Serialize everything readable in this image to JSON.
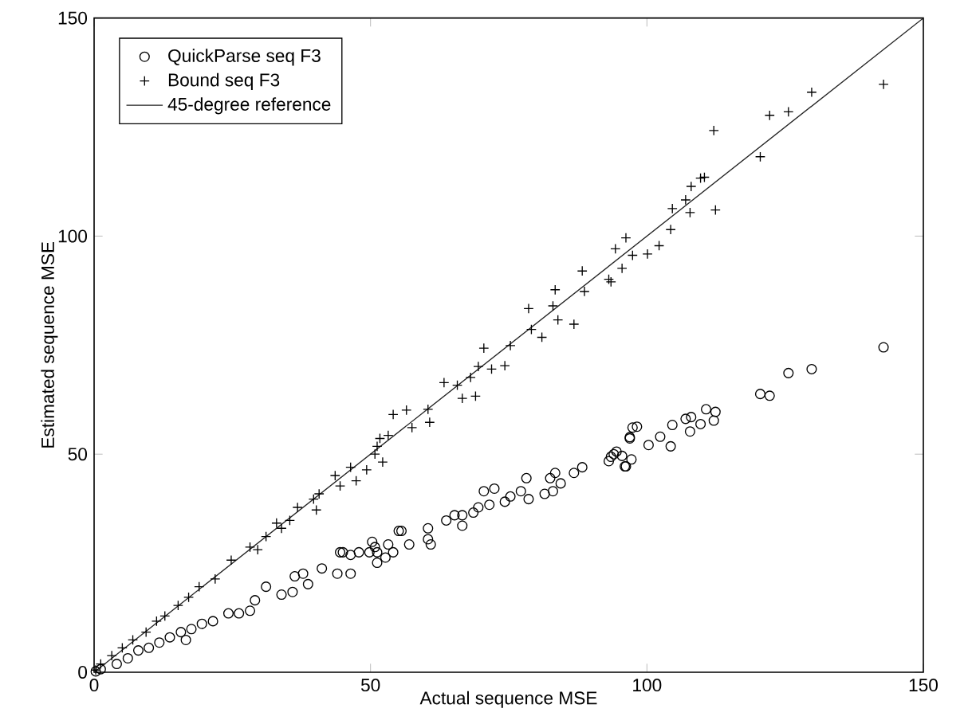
{
  "chart_data": {
    "type": "scatter",
    "xlabel": "Actual sequence MSE",
    "ylabel": "Estimated sequence MSE",
    "xlim": [
      0,
      150
    ],
    "ylim": [
      0,
      150
    ],
    "xticks": [
      0,
      50,
      100,
      150
    ],
    "yticks": [
      0,
      50,
      100,
      150
    ],
    "grid": false,
    "legend": "top left",
    "series": [
      {
        "name": "QuickParse seq F3",
        "color": "#000000",
        "marker": "circle",
        "x": [
          142.8,
          129.8,
          125.6,
          120.5,
          122.2,
          110.7,
          112.4,
          112.1,
          108,
          107,
          109.7,
          107.8,
          104.6,
          104.3,
          102.4,
          100.3,
          98.2,
          96.9,
          97.2,
          96,
          94.5,
          93.5,
          97.4,
          96.9,
          94,
          95.5,
          93.1,
          96.2,
          88.3,
          86.8,
          83.4,
          82.5,
          84.4,
          83,
          81.5,
          78.2,
          77.2,
          78.6,
          75.3,
          74.3,
          72.4,
          70.5,
          71.5,
          69.5,
          68.6,
          66.6,
          63.7,
          65.2,
          66.6,
          60.4,
          60.4,
          60.9,
          55.6,
          57,
          53.2,
          50.8,
          51.2,
          47.9,
          45,
          54.1,
          55.1,
          50.3,
          49.8,
          52.7,
          51.2,
          44.5,
          46.4,
          41.2,
          44,
          46.4,
          36.3,
          37.8,
          31.1,
          33.9,
          35.9,
          38.7,
          29.1,
          26.2,
          28.2,
          24.3,
          21.5,
          19.5,
          17.6,
          15.7,
          16.6,
          13.7,
          11.8,
          9.9,
          8,
          6.1,
          4.1,
          1.2,
          0.3
        ],
        "values": [
          74.5,
          69.5,
          68.6,
          63.8,
          63.4,
          60.3,
          59.7,
          57.7,
          58.5,
          58.1,
          56.9,
          55.2,
          56.7,
          51.8,
          54,
          52.1,
          56.3,
          53.9,
          48.8,
          47.2,
          50.6,
          49.4,
          56.1,
          53.6,
          50,
          49.6,
          48.4,
          47.2,
          47,
          45.7,
          45.7,
          44.5,
          43.3,
          41.5,
          40.9,
          44.5,
          41.5,
          39.7,
          40.3,
          39.1,
          42.1,
          41.5,
          38.4,
          37.8,
          36.6,
          36,
          34.8,
          36,
          33.6,
          33,
          30.5,
          29.3,
          32.4,
          29.3,
          29.3,
          28.7,
          27.5,
          27.5,
          27.5,
          27.5,
          32.4,
          29.9,
          27.5,
          26.3,
          25.1,
          27.5,
          26.9,
          23.8,
          22.6,
          22.6,
          22,
          22.6,
          19.6,
          17.8,
          18.4,
          20.2,
          16.5,
          13.5,
          14.1,
          13.5,
          11.7,
          11.1,
          9.9,
          9.2,
          7.4,
          8,
          6.8,
          5.6,
          5,
          3.2,
          1.9,
          0.7,
          0.2
        ]
      },
      {
        "name": "Bound seq F3",
        "color": "#000000",
        "marker": "cross",
        "x": [
          142.8,
          129.8,
          125.6,
          122.2,
          120.5,
          112.1,
          112.4,
          110.4,
          109.7,
          108,
          107,
          104.6,
          107.8,
          104.3,
          102.2,
          100.1,
          96.2,
          94.3,
          97.4,
          95.5,
          93.5,
          88.3,
          88.7,
          93.1,
          83.4,
          83,
          83.9,
          86.8,
          78.6,
          81,
          79.1,
          75.3,
          70.5,
          71.9,
          74.3,
          69.5,
          68.1,
          66.6,
          69,
          63.3,
          65.7,
          60.4,
          56.5,
          54.1,
          57.5,
          60.7,
          53.2,
          50.8,
          51.2,
          52.2,
          49.3,
          46.4,
          47.4,
          44.5,
          43.6,
          40.7,
          51.7,
          39.7,
          40.2,
          36.8,
          35.4,
          33,
          33.9,
          31.1,
          29.6,
          28.2,
          24.8,
          21.9,
          19,
          17.1,
          15.2,
          12.8,
          11.3,
          9.4,
          7,
          5.1,
          3.2,
          1.2,
          0.3
        ],
        "values": [
          134.8,
          133,
          128.5,
          127.7,
          118.2,
          124.2,
          106,
          113.5,
          113.3,
          111.4,
          108.3,
          106.3,
          105.4,
          101.5,
          97.8,
          95.9,
          99.6,
          97.1,
          95.6,
          92.6,
          89.5,
          92,
          87.3,
          90.1,
          87.7,
          84,
          80.8,
          79.8,
          83.4,
          76.8,
          78.6,
          74.9,
          74.3,
          69.5,
          70.3,
          70.1,
          67.6,
          62.8,
          63.3,
          66.4,
          65.8,
          60.3,
          60.1,
          59.1,
          56.1,
          57.3,
          54.3,
          50,
          51.8,
          48.2,
          46.4,
          47,
          43.9,
          42.7,
          45.1,
          40.9,
          53.6,
          39.7,
          37.2,
          37.8,
          34.8,
          34.2,
          33,
          31.1,
          28.1,
          28.7,
          25.7,
          21.4,
          19.6,
          17.2,
          15.3,
          12.9,
          11.7,
          9.2,
          7.4,
          5.6,
          3.8,
          1.9,
          0.5
        ]
      },
      {
        "name": "45-degree reference",
        "color": "#222222",
        "type": "line",
        "line_style": "solid",
        "x": [
          0,
          150
        ],
        "values": [
          0,
          150
        ]
      }
    ]
  }
}
